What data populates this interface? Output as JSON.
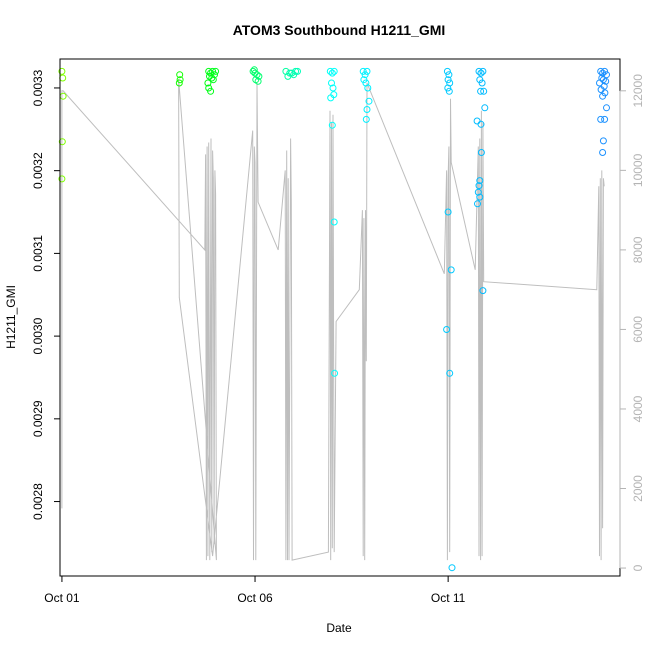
{
  "chart_data": {
    "type": "scatter",
    "title": "ATOM3 Southbound H1211_GMI",
    "xlabel": "Date",
    "ylabel": "H1211_GMI",
    "x_ticks": [
      {
        "label": "Oct 01",
        "day": 1
      },
      {
        "label": "Oct 06",
        "day": 6
      },
      {
        "label": "Oct 11",
        "day": 11
      }
    ],
    "xlim_days": [
      0.95,
      15.45
    ],
    "ylim": [
      0.00271,
      0.003335
    ],
    "y_ticks": [
      0.0028,
      0.0029,
      0.003,
      0.0031,
      0.0032,
      0.0033
    ],
    "y2_ticks": [
      0,
      2000,
      4000,
      6000,
      8000,
      10000,
      12000
    ],
    "y2lim": [
      -200,
      12800
    ],
    "colors": {
      "line": "#bebebe",
      "right_axis": "#b4b4b4",
      "points_gradient": [
        "#7fff00",
        "#00ff00",
        "#00ffff",
        "#00bfff",
        "#1e90ff"
      ]
    },
    "points": [
      {
        "x": 1.0,
        "y": 0.00332
      },
      {
        "x": 1.02,
        "y": 0.003312
      },
      {
        "x": 1.03,
        "y": 0.00329
      },
      {
        "x": 1.01,
        "y": 0.003235
      },
      {
        "x": 1.0,
        "y": 0.00319
      },
      {
        "x": 4.05,
        "y": 0.003316
      },
      {
        "x": 4.06,
        "y": 0.00331
      },
      {
        "x": 4.04,
        "y": 0.003306
      },
      {
        "x": 4.8,
        "y": 0.00332
      },
      {
        "x": 4.85,
        "y": 0.003318
      },
      {
        "x": 4.9,
        "y": 0.00332
      },
      {
        "x": 4.95,
        "y": 0.003316
      },
      {
        "x": 4.82,
        "y": 0.003314
      },
      {
        "x": 4.88,
        "y": 0.003312
      },
      {
        "x": 4.92,
        "y": 0.00331
      },
      {
        "x": 4.78,
        "y": 0.003306
      },
      {
        "x": 4.8,
        "y": 0.0033
      },
      {
        "x": 4.85,
        "y": 0.003296
      },
      {
        "x": 4.98,
        "y": 0.00332
      },
      {
        "x": 5.95,
        "y": 0.00332
      },
      {
        "x": 6.0,
        "y": 0.003318
      },
      {
        "x": 6.05,
        "y": 0.003316
      },
      {
        "x": 6.1,
        "y": 0.003314
      },
      {
        "x": 6.02,
        "y": 0.00331
      },
      {
        "x": 6.08,
        "y": 0.003308
      },
      {
        "x": 5.98,
        "y": 0.003322
      },
      {
        "x": 6.8,
        "y": 0.00332
      },
      {
        "x": 6.9,
        "y": 0.003318
      },
      {
        "x": 7.0,
        "y": 0.003316
      },
      {
        "x": 7.1,
        "y": 0.00332
      },
      {
        "x": 6.85,
        "y": 0.003314
      },
      {
        "x": 6.95,
        "y": 0.003318
      },
      {
        "x": 7.05,
        "y": 0.00332
      },
      {
        "x": 7.95,
        "y": 0.00332
      },
      {
        "x": 8.0,
        "y": 0.003318
      },
      {
        "x": 8.05,
        "y": 0.00332
      },
      {
        "x": 7.98,
        "y": 0.003306
      },
      {
        "x": 8.02,
        "y": 0.0033
      },
      {
        "x": 8.04,
        "y": 0.003292
      },
      {
        "x": 7.96,
        "y": 0.003288
      },
      {
        "x": 8.0,
        "y": 0.003255
      },
      {
        "x": 8.05,
        "y": 0.003138
      },
      {
        "x": 8.06,
        "y": 0.002955
      },
      {
        "x": 8.8,
        "y": 0.00332
      },
      {
        "x": 8.85,
        "y": 0.003316
      },
      {
        "x": 8.9,
        "y": 0.00332
      },
      {
        "x": 8.82,
        "y": 0.00331
      },
      {
        "x": 8.87,
        "y": 0.003306
      },
      {
        "x": 8.92,
        "y": 0.0033
      },
      {
        "x": 8.95,
        "y": 0.003284
      },
      {
        "x": 8.9,
        "y": 0.003274
      },
      {
        "x": 8.88,
        "y": 0.003262
      },
      {
        "x": 10.98,
        "y": 0.00332
      },
      {
        "x": 11.02,
        "y": 0.003316
      },
      {
        "x": 11.0,
        "y": 0.00331
      },
      {
        "x": 11.04,
        "y": 0.003306
      },
      {
        "x": 10.99,
        "y": 0.0033
      },
      {
        "x": 11.03,
        "y": 0.003296
      },
      {
        "x": 11.0,
        "y": 0.00315
      },
      {
        "x": 11.08,
        "y": 0.00308
      },
      {
        "x": 10.96,
        "y": 0.003008
      },
      {
        "x": 11.04,
        "y": 0.002955
      },
      {
        "x": 11.1,
        "y": 0.00272
      },
      {
        "x": 11.8,
        "y": 0.00332
      },
      {
        "x": 11.85,
        "y": 0.003318
      },
      {
        "x": 11.9,
        "y": 0.00332
      },
      {
        "x": 11.82,
        "y": 0.00331
      },
      {
        "x": 11.88,
        "y": 0.003306
      },
      {
        "x": 11.84,
        "y": 0.003296
      },
      {
        "x": 11.92,
        "y": 0.003296
      },
      {
        "x": 11.95,
        "y": 0.003276
      },
      {
        "x": 11.75,
        "y": 0.00326
      },
      {
        "x": 11.85,
        "y": 0.003256
      },
      {
        "x": 11.86,
        "y": 0.003222
      },
      {
        "x": 11.82,
        "y": 0.003188
      },
      {
        "x": 11.8,
        "y": 0.003182
      },
      {
        "x": 11.78,
        "y": 0.003174
      },
      {
        "x": 11.82,
        "y": 0.003168
      },
      {
        "x": 11.76,
        "y": 0.00316
      },
      {
        "x": 11.9,
        "y": 0.003055
      },
      {
        "x": 14.95,
        "y": 0.00332
      },
      {
        "x": 15.0,
        "y": 0.003318
      },
      {
        "x": 15.05,
        "y": 0.00332
      },
      {
        "x": 15.1,
        "y": 0.003316
      },
      {
        "x": 14.98,
        "y": 0.003312
      },
      {
        "x": 15.02,
        "y": 0.00331
      },
      {
        "x": 15.08,
        "y": 0.003308
      },
      {
        "x": 14.92,
        "y": 0.003306
      },
      {
        "x": 15.04,
        "y": 0.003302
      },
      {
        "x": 14.96,
        "y": 0.003298
      },
      {
        "x": 15.06,
        "y": 0.003294
      },
      {
        "x": 15.0,
        "y": 0.00329
      },
      {
        "x": 15.1,
        "y": 0.003276
      },
      {
        "x": 14.95,
        "y": 0.003262
      },
      {
        "x": 15.05,
        "y": 0.003262
      },
      {
        "x": 15.02,
        "y": 0.003236
      },
      {
        "x": 15.0,
        "y": 0.003222
      }
    ],
    "line_y2": [
      {
        "x": 1.0,
        "y2": 1500
      },
      {
        "x": 1.0,
        "y2": 12000
      },
      {
        "x": 1.03,
        "y2": 12000
      },
      {
        "x": 4.7,
        "y2": 8000
      },
      {
        "x": 4.72,
        "y2": 10400
      },
      {
        "x": 4.74,
        "y2": 200
      },
      {
        "x": 4.76,
        "y2": 10600
      },
      {
        "x": 4.78,
        "y2": 300
      },
      {
        "x": 4.8,
        "y2": 10700
      },
      {
        "x": 4.83,
        "y2": 200
      },
      {
        "x": 4.86,
        "y2": 10800
      },
      {
        "x": 4.88,
        "y2": 400
      },
      {
        "x": 4.9,
        "y2": 10500
      },
      {
        "x": 4.92,
        "y2": 9800
      },
      {
        "x": 4.94,
        "y2": 600
      },
      {
        "x": 4.96,
        "y2": 10000
      },
      {
        "x": 4.98,
        "y2": 9400
      },
      {
        "x": 5.0,
        "y2": 200
      },
      {
        "x": 4.02,
        "y2": 12300
      },
      {
        "x": 4.04,
        "y2": 6800
      },
      {
        "x": 4.9,
        "y2": 300
      },
      {
        "x": 5.94,
        "y2": 11000
      },
      {
        "x": 5.96,
        "y2": 200
      },
      {
        "x": 5.98,
        "y2": 10600
      },
      {
        "x": 6.0,
        "y2": 10200
      },
      {
        "x": 6.02,
        "y2": 200
      },
      {
        "x": 6.05,
        "y2": 12200
      },
      {
        "x": 6.08,
        "y2": 9200
      },
      {
        "x": 6.6,
        "y2": 8000
      },
      {
        "x": 6.78,
        "y2": 10000
      },
      {
        "x": 6.8,
        "y2": 200
      },
      {
        "x": 6.82,
        "y2": 10500
      },
      {
        "x": 6.84,
        "y2": 200
      },
      {
        "x": 6.86,
        "y2": 9800
      },
      {
        "x": 6.88,
        "y2": 200
      },
      {
        "x": 6.92,
        "y2": 10800
      },
      {
        "x": 6.94,
        "y2": 9200
      },
      {
        "x": 6.96,
        "y2": 200
      },
      {
        "x": 7.9,
        "y2": 400
      },
      {
        "x": 7.94,
        "y2": 11500
      },
      {
        "x": 7.96,
        "y2": 200
      },
      {
        "x": 7.98,
        "y2": 11200
      },
      {
        "x": 8.0,
        "y2": 500
      },
      {
        "x": 8.02,
        "y2": 11400
      },
      {
        "x": 8.05,
        "y2": 400
      },
      {
        "x": 8.1,
        "y2": 6200
      },
      {
        "x": 8.7,
        "y2": 7000
      },
      {
        "x": 8.78,
        "y2": 9000
      },
      {
        "x": 8.8,
        "y2": 300
      },
      {
        "x": 8.82,
        "y2": 8800
      },
      {
        "x": 8.84,
        "y2": 200
      },
      {
        "x": 8.86,
        "y2": 9000
      },
      {
        "x": 8.88,
        "y2": 5200
      },
      {
        "x": 8.9,
        "y2": 12200
      },
      {
        "x": 10.9,
        "y2": 7400
      },
      {
        "x": 10.96,
        "y2": 10000
      },
      {
        "x": 10.98,
        "y2": 200
      },
      {
        "x": 11.0,
        "y2": 9800
      },
      {
        "x": 11.02,
        "y2": 10600
      },
      {
        "x": 11.04,
        "y2": 400
      },
      {
        "x": 11.06,
        "y2": 11800
      },
      {
        "x": 11.08,
        "y2": 10200
      },
      {
        "x": 11.7,
        "y2": 7500
      },
      {
        "x": 11.78,
        "y2": 10600
      },
      {
        "x": 11.8,
        "y2": 300
      },
      {
        "x": 11.82,
        "y2": 10800
      },
      {
        "x": 11.84,
        "y2": 200
      },
      {
        "x": 11.86,
        "y2": 11500
      },
      {
        "x": 11.88,
        "y2": 300
      },
      {
        "x": 11.9,
        "y2": 11200
      },
      {
        "x": 11.92,
        "y2": 7200
      },
      {
        "x": 14.85,
        "y2": 7000
      },
      {
        "x": 14.9,
        "y2": 9600
      },
      {
        "x": 14.92,
        "y2": 300
      },
      {
        "x": 14.94,
        "y2": 9800
      },
      {
        "x": 14.96,
        "y2": 200
      },
      {
        "x": 14.98,
        "y2": 10000
      },
      {
        "x": 15.0,
        "y2": 1000
      },
      {
        "x": 15.02,
        "y2": 9800
      },
      {
        "x": 15.04,
        "y2": 9600
      }
    ]
  }
}
